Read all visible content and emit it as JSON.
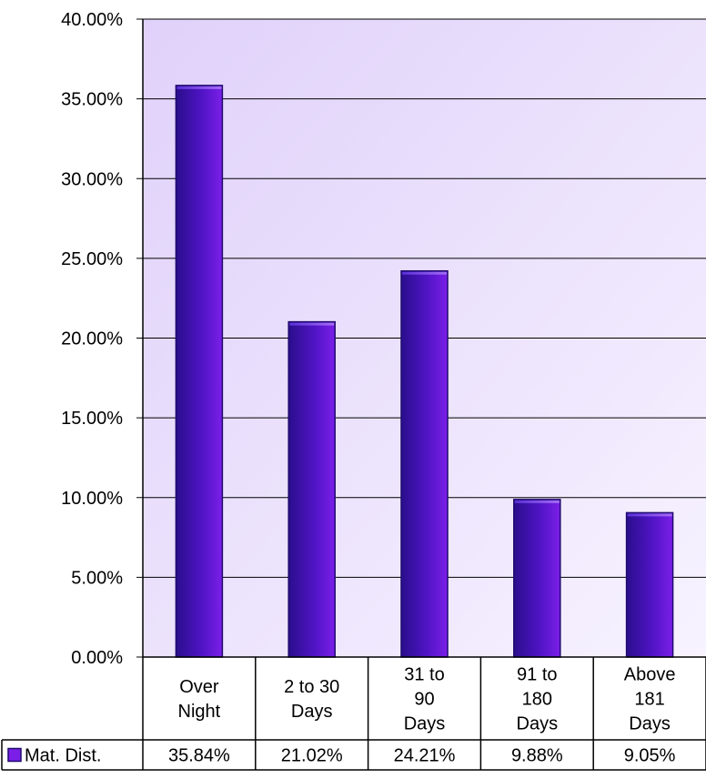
{
  "chart_data": {
    "type": "bar",
    "categories": [
      [
        "Over",
        "Night"
      ],
      [
        "2 to 30",
        "Days"
      ],
      [
        "31 to",
        "90",
        "Days"
      ],
      [
        "91 to",
        "180",
        "Days"
      ],
      [
        "Above",
        "181",
        "Days"
      ]
    ],
    "series": [
      {
        "name": "Mat. Dist.",
        "values": [
          35.84,
          21.02,
          24.21,
          9.88,
          9.05
        ],
        "value_labels": [
          "35.84%",
          "21.02%",
          "24.21%",
          "9.88%",
          "9.05%"
        ]
      }
    ],
    "yticks": [
      "0.00%",
      "5.00%",
      "10.00%",
      "15.00%",
      "20.00%",
      "25.00%",
      "30.00%",
      "35.00%",
      "40.00%"
    ],
    "ylim": [
      0,
      40
    ],
    "grid": true,
    "legend": "data-table",
    "colors": {
      "bar_dark": "#2a0e8c",
      "bar_light": "#7b1fe8",
      "bar_outline": "#1e0a6e",
      "plot_bg_start": "#e0d1fa",
      "plot_bg_end": "#f7f3ff",
      "gridline": "#000000"
    }
  }
}
